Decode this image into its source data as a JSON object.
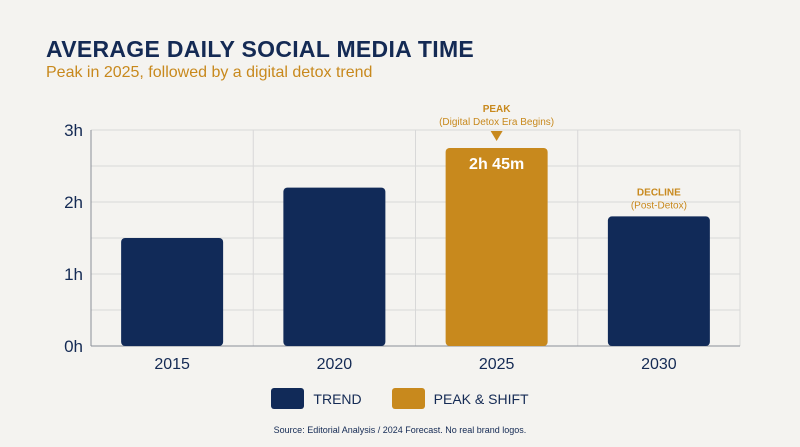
{
  "title": "AVERAGE DAILY SOCIAL MEDIA TIME",
  "subtitle": "Peak in 2025, followed by a digital detox trend",
  "source": "Source: Editorial Analysis / 2024 Forecast. No real brand logos.",
  "colors": {
    "trend": "#112a58",
    "peak": "#c8891d",
    "text": "#142a54",
    "grid": "#d8d8d8"
  },
  "legend": [
    {
      "label": "TREND",
      "color": "#112a58"
    },
    {
      "label": "PEAK & SHIFT",
      "color": "#c8891d"
    }
  ],
  "chart_data": {
    "type": "bar",
    "categories": [
      "2015",
      "2020",
      "2025",
      "2030"
    ],
    "values": [
      1.5,
      2.2,
      2.75,
      1.8
    ],
    "bar_series": [
      "trend",
      "trend",
      "peak",
      "trend"
    ],
    "ylim": [
      0,
      3
    ],
    "yticks": [
      0,
      1,
      2,
      3
    ],
    "ytick_labels": [
      "0h",
      "1h",
      "2h",
      "3h"
    ],
    "grid": true,
    "data_labels": [
      null,
      null,
      "2h 45m",
      null
    ],
    "annotations": [
      {
        "index": 2,
        "title": "PEAK",
        "detail": "(Digital Detox Era Begins)",
        "marker": "triangle"
      },
      {
        "index": 3,
        "title": "DECLINE",
        "detail": "(Post-Detox)"
      }
    ]
  }
}
